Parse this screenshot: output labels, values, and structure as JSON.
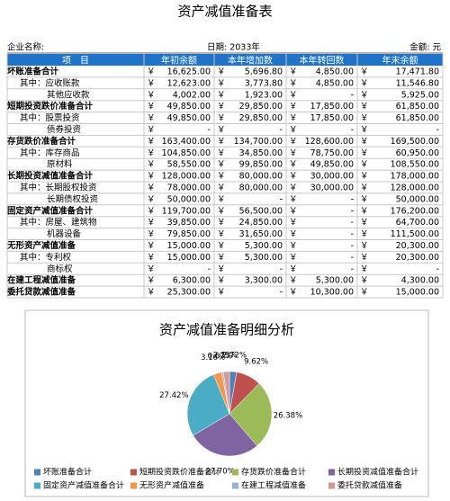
{
  "header": {
    "title": "资产减值准备表",
    "company_label": "企业名称:",
    "date_label": "日期: 2033年",
    "unit_label": "金额: 元"
  },
  "table": {
    "columns": [
      "项　目",
      "年初余额",
      "本年增加数",
      "本年转回数",
      "年末余额"
    ],
    "currency": "￥",
    "rows": [
      {
        "label": "坏账准备合计",
        "level": 0,
        "cells": [
          "16,625.00",
          "5,696.80",
          "4,850.00",
          "17,471.80"
        ]
      },
      {
        "label": "其中：应收账款",
        "level": 1,
        "cells": [
          "12,623.00",
          "3,773.80",
          "4,850.00",
          "11,546.80"
        ]
      },
      {
        "label": "其他应收款",
        "level": 2,
        "cells": [
          "4,002.00",
          "1,923.00",
          "-",
          "5,925.00"
        ]
      },
      {
        "label": "短期投资跌价准备合计",
        "level": 0,
        "cells": [
          "49,850.00",
          "29,850.00",
          "17,850.00",
          "61,850.00"
        ]
      },
      {
        "label": "其中：股票投资",
        "level": 1,
        "cells": [
          "49,850.00",
          "29,850.00",
          "17,850.00",
          "61,850.00"
        ]
      },
      {
        "label": "债券投资",
        "level": 2,
        "cells": [
          "-",
          "-",
          "-",
          "-"
        ]
      },
      {
        "label": "存货跌价准备合计",
        "level": 0,
        "cells": [
          "163,400.00",
          "134,700.00",
          "128,600.00",
          "169,500.00"
        ]
      },
      {
        "label": "其中：库存商品",
        "level": 1,
        "cells": [
          "104,850.00",
          "34,850.00",
          "78,750.00",
          "60,950.00"
        ]
      },
      {
        "label": "原材料",
        "level": 2,
        "cells": [
          "58,550.00",
          "99,850.00",
          "49,850.00",
          "108,550.00"
        ]
      },
      {
        "label": "长期投资减值准备合计",
        "level": 0,
        "cells": [
          "128,000.00",
          "80,000.00",
          "30,000.00",
          "178,000.00"
        ]
      },
      {
        "label": "其中：长期股权投资",
        "level": 1,
        "cells": [
          "78,000.00",
          "80,000.00",
          "30,000.00",
          "128,000.00"
        ]
      },
      {
        "label": "长期债权投资",
        "level": 2,
        "cells": [
          "50,000.00",
          "-",
          "-",
          "50,000.00"
        ]
      },
      {
        "label": "固定资产减值准备合计",
        "level": 0,
        "cells": [
          "119,700.00",
          "56,500.00",
          "-",
          "176,200.00"
        ]
      },
      {
        "label": "其中：房屋、建筑物",
        "level": 1,
        "cells": [
          "39,850.00",
          "24,850.00",
          "-",
          "64,700.00"
        ]
      },
      {
        "label": "机器设备",
        "level": 2,
        "cells": [
          "79,850.00",
          "31,650.00",
          "-",
          "111,500.00"
        ]
      },
      {
        "label": "无形资产减值准备",
        "level": 0,
        "cells": [
          "15,000.00",
          "5,300.00",
          "-",
          "20,300.00"
        ]
      },
      {
        "label": "其中：专利权",
        "level": 1,
        "cells": [
          "15,000.00",
          "5,300.00",
          "-",
          "20,300.00"
        ]
      },
      {
        "label": "商标权",
        "level": 2,
        "cells": [
          "-",
          "-",
          "-",
          "-"
        ]
      },
      {
        "label": "在建工程减值准备",
        "level": 0,
        "cells": [
          "6,300.00",
          "3,300.00",
          "5,300.00",
          "4,300.00"
        ]
      },
      {
        "label": "委托贷款减值准备",
        "level": 0,
        "cells": [
          "25,300.00",
          "-",
          "10,300.00",
          "15,000.00"
        ]
      }
    ]
  },
  "chart_data": {
    "type": "pie",
    "title": "资产减值准备明细分析",
    "categories": [
      "坏账准备合计",
      "短期投资跌价准备合计",
      "存货跌价准备合计",
      "长期投资减值准备合计",
      "固定资产减值准备合计",
      "无形资产减值准备",
      "在建工程减值准备",
      "委托贷款减值准备"
    ],
    "values": [
      2.72,
      9.62,
      26.38,
      27.7,
      27.42,
      3.16,
      0.67,
      2.33
    ],
    "value_labels": [
      "2.72%",
      "9.62%",
      "26.38%",
      "27.70%",
      "27.42%",
      "3.16%",
      "0.67%",
      "2.33%"
    ],
    "colors": [
      "#4f81bd",
      "#c0504d",
      "#9bbb59",
      "#8064a2",
      "#4bacc6",
      "#f79646",
      "#95b3d7",
      "#d99694"
    ]
  }
}
